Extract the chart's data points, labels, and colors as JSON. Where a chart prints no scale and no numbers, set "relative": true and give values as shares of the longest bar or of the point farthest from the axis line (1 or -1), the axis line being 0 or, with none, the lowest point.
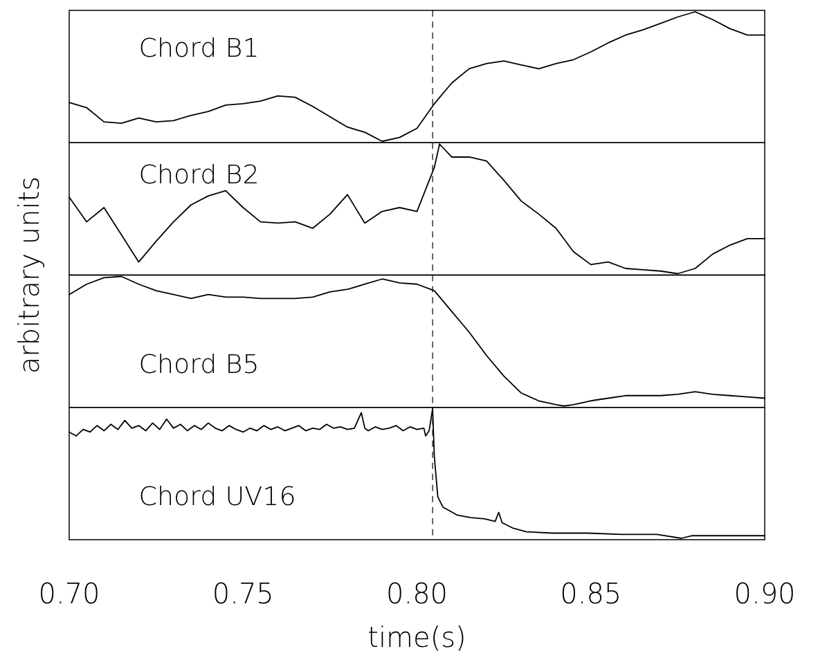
{
  "chart_data": [
    {
      "type": "line",
      "relative": true,
      "ylabel": "arbitrary units",
      "annotations": [
        "Chord B1"
      ],
      "xlim": [
        0.7,
        0.9
      ],
      "tick_labels": false,
      "ref_lines": [
        {
          "axis": "x",
          "value": 0.8045,
          "line_style": "dashed",
          "color": "#000000"
        }
      ],
      "series": [
        {
          "color": "#000000",
          "x": [
            0.7,
            0.705,
            0.71,
            0.715,
            0.72,
            0.725,
            0.73,
            0.735,
            0.74,
            0.745,
            0.75,
            0.755,
            0.76,
            0.765,
            0.77,
            0.775,
            0.78,
            0.785,
            0.79,
            0.795,
            0.8,
            0.805,
            0.81,
            0.815,
            0.82,
            0.825,
            0.83,
            0.835,
            0.84,
            0.845,
            0.85,
            0.855,
            0.86,
            0.865,
            0.87,
            0.875,
            0.88,
            0.885,
            0.89,
            0.895,
            0.9
          ],
          "values": [
            0.3,
            0.26,
            0.15,
            0.14,
            0.18,
            0.15,
            0.16,
            0.2,
            0.23,
            0.28,
            0.29,
            0.31,
            0.35,
            0.34,
            0.27,
            0.19,
            0.11,
            0.07,
            0.0,
            0.03,
            0.1,
            0.29,
            0.45,
            0.56,
            0.6,
            0.62,
            0.59,
            0.56,
            0.6,
            0.63,
            0.69,
            0.76,
            0.82,
            0.86,
            0.91,
            0.96,
            1.0,
            0.94,
            0.87,
            0.82,
            0.82
          ]
        }
      ]
    },
    {
      "type": "line",
      "relative": true,
      "annotations": [
        "Chord B2"
      ],
      "xlim": [
        0.7,
        0.9
      ],
      "tick_labels": false,
      "ref_lines": [
        {
          "axis": "x",
          "value": 0.8045,
          "line_style": "dashed",
          "color": "#000000"
        }
      ],
      "series": [
        {
          "color": "#000000",
          "x": [
            0.7,
            0.705,
            0.71,
            0.715,
            0.72,
            0.725,
            0.73,
            0.735,
            0.74,
            0.745,
            0.75,
            0.755,
            0.76,
            0.765,
            0.77,
            0.775,
            0.78,
            0.785,
            0.79,
            0.795,
            0.8,
            0.805,
            0.8065,
            0.81,
            0.815,
            0.82,
            0.825,
            0.83,
            0.835,
            0.84,
            0.845,
            0.85,
            0.855,
            0.86,
            0.865,
            0.87,
            0.875,
            0.88,
            0.885,
            0.89,
            0.895,
            0.9
          ],
          "values": [
            0.59,
            0.4,
            0.51,
            0.3,
            0.09,
            0.25,
            0.4,
            0.53,
            0.6,
            0.64,
            0.51,
            0.4,
            0.39,
            0.4,
            0.35,
            0.46,
            0.61,
            0.39,
            0.48,
            0.51,
            0.48,
            0.82,
            1.0,
            0.9,
            0.9,
            0.87,
            0.72,
            0.56,
            0.46,
            0.35,
            0.17,
            0.07,
            0.09,
            0.04,
            0.03,
            0.02,
            0.0,
            0.04,
            0.15,
            0.22,
            0.27,
            0.27
          ]
        }
      ]
    },
    {
      "type": "line",
      "relative": true,
      "annotations": [
        "Chord B5"
      ],
      "xlim": [
        0.7,
        0.9
      ],
      "tick_labels": false,
      "ref_lines": [
        {
          "axis": "x",
          "value": 0.8045,
          "line_style": "dashed",
          "color": "#000000"
        }
      ],
      "series": [
        {
          "color": "#000000",
          "x": [
            0.7,
            0.705,
            0.71,
            0.715,
            0.72,
            0.725,
            0.73,
            0.735,
            0.74,
            0.745,
            0.75,
            0.755,
            0.76,
            0.765,
            0.77,
            0.775,
            0.78,
            0.785,
            0.79,
            0.795,
            0.8,
            0.805,
            0.81,
            0.815,
            0.82,
            0.825,
            0.83,
            0.835,
            0.84,
            0.8423,
            0.845,
            0.85,
            0.855,
            0.86,
            0.865,
            0.87,
            0.875,
            0.88,
            0.885,
            0.89,
            0.895,
            0.9
          ],
          "values": [
            0.86,
            0.94,
            0.99,
            1.0,
            0.94,
            0.89,
            0.86,
            0.83,
            0.86,
            0.84,
            0.84,
            0.83,
            0.83,
            0.83,
            0.84,
            0.88,
            0.9,
            0.94,
            0.98,
            0.95,
            0.94,
            0.89,
            0.73,
            0.57,
            0.39,
            0.23,
            0.1,
            0.04,
            0.01,
            0.0,
            0.01,
            0.04,
            0.06,
            0.08,
            0.08,
            0.08,
            0.09,
            0.11,
            0.09,
            0.08,
            0.07,
            0.06
          ]
        }
      ]
    },
    {
      "type": "line",
      "relative": true,
      "xlabel": "time(s)",
      "annotations": [
        "Chord UV16"
      ],
      "xlim": [
        0.7,
        0.9
      ],
      "xticks": [
        {
          "value": 0.7,
          "label": "0.70"
        },
        {
          "value": 0.75,
          "label": "0.75"
        },
        {
          "value": 0.8,
          "label": "0.80"
        },
        {
          "value": 0.85,
          "label": "0.85"
        },
        {
          "value": 0.9,
          "label": "0.90"
        }
      ],
      "tick_labels": "x",
      "ref_lines": [
        {
          "axis": "x",
          "value": 0.8045,
          "line_style": "dashed",
          "color": "#000000"
        }
      ],
      "series": [
        {
          "color": "#000000",
          "x": [
            0.7,
            0.702,
            0.704,
            0.706,
            0.708,
            0.71,
            0.712,
            0.714,
            0.716,
            0.718,
            0.72,
            0.722,
            0.724,
            0.726,
            0.728,
            0.73,
            0.732,
            0.734,
            0.736,
            0.738,
            0.74,
            0.742,
            0.744,
            0.746,
            0.748,
            0.75,
            0.752,
            0.754,
            0.756,
            0.758,
            0.76,
            0.762,
            0.764,
            0.766,
            0.768,
            0.77,
            0.772,
            0.774,
            0.776,
            0.778,
            0.78,
            0.782,
            0.784,
            0.785,
            0.786,
            0.788,
            0.79,
            0.792,
            0.794,
            0.796,
            0.798,
            0.8,
            0.802,
            0.8025,
            0.8035,
            0.8045,
            0.805,
            0.806,
            0.8075,
            0.8115,
            0.8155,
            0.8195,
            0.8225,
            0.8235,
            0.8245,
            0.8275,
            0.8315,
            0.839,
            0.849,
            0.859,
            0.869,
            0.876,
            0.879,
            0.889,
            0.9
          ],
          "values": [
            0.82,
            0.79,
            0.84,
            0.82,
            0.87,
            0.83,
            0.88,
            0.84,
            0.91,
            0.85,
            0.87,
            0.83,
            0.89,
            0.84,
            0.92,
            0.85,
            0.88,
            0.83,
            0.87,
            0.84,
            0.89,
            0.85,
            0.83,
            0.87,
            0.84,
            0.82,
            0.85,
            0.83,
            0.87,
            0.84,
            0.86,
            0.83,
            0.85,
            0.87,
            0.83,
            0.85,
            0.84,
            0.88,
            0.85,
            0.86,
            0.84,
            0.85,
            0.97,
            0.85,
            0.83,
            0.86,
            0.84,
            0.85,
            0.87,
            0.83,
            0.86,
            0.84,
            0.85,
            0.79,
            0.83,
            1.0,
            0.63,
            0.32,
            0.24,
            0.18,
            0.16,
            0.15,
            0.13,
            0.2,
            0.12,
            0.08,
            0.05,
            0.04,
            0.04,
            0.03,
            0.03,
            0.0,
            0.02,
            0.02,
            0.02
          ]
        }
      ]
    }
  ]
}
